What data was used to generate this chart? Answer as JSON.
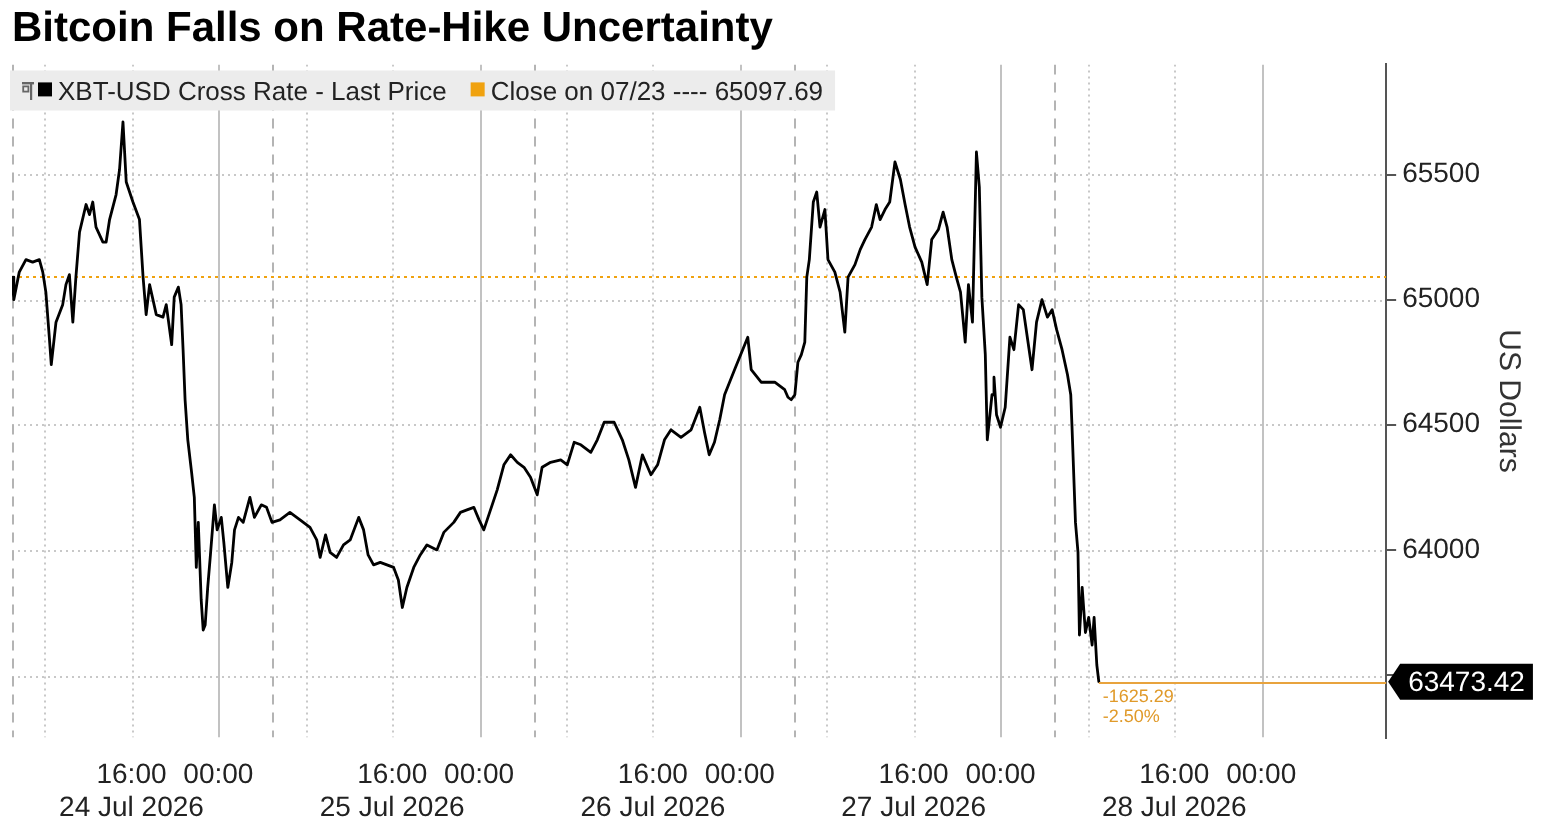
{
  "chart_data": {
    "type": "line",
    "title": "Bitcoin Falls on Rate-Hike Uncertainty",
    "ylabel": "US Dollars",
    "x": [
      "2026-07-24T05:00",
      "2026-07-24T05:10",
      "2026-07-24T05:40",
      "2026-07-24T06:17",
      "2026-07-24T06:54",
      "2026-07-24T07:31",
      "2026-07-24T07:50",
      "2026-07-24T08:07",
      "2026-07-24T08:26",
      "2026-07-24T08:37",
      "2026-07-24T09:03",
      "2026-07-24T09:40",
      "2026-07-24T09:58",
      "2026-07-24T10:17",
      "2026-07-24T10:36",
      "2026-07-24T10:53",
      "2026-07-24T11:13",
      "2026-07-24T11:49",
      "2026-07-24T12:08",
      "2026-07-24T12:26",
      "2026-07-24T12:44",
      "2026-07-24T13:22",
      "2026-07-24T13:40",
      "2026-07-24T13:59",
      "2026-07-24T14:35",
      "2026-07-24T14:54",
      "2026-07-24T15:13",
      "2026-07-24T15:31",
      "2026-07-24T16:08",
      "2026-07-24T16:44",
      "2026-07-24T17:04",
      "2026-07-24T17:21",
      "2026-07-24T17:40",
      "2026-07-24T18:17",
      "2026-07-24T18:54",
      "2026-07-24T19:12",
      "2026-07-24T19:42",
      "2026-07-24T19:56",
      "2026-07-24T20:19",
      "2026-07-24T20:34",
      "2026-07-24T20:45",
      "2026-07-24T20:56",
      "2026-07-24T21:11",
      "2026-07-24T21:32",
      "2026-07-24T21:47",
      "2026-07-24T21:58",
      "2026-07-24T22:09",
      "2026-07-24T22:25",
      "2026-07-24T22:36",
      "2026-07-24T22:47",
      "2026-07-24T23:01",
      "2026-07-24T23:16",
      "2026-07-24T23:38",
      "2026-07-24T23:53",
      "2026-07-25T00:16",
      "2026-07-25T00:30",
      "2026-07-25T00:52",
      "2026-07-25T01:14",
      "2026-07-25T01:29",
      "2026-07-25T01:51",
      "2026-07-25T02:17",
      "2026-07-25T02:54",
      "2026-07-25T03:19",
      "2026-07-25T03:57",
      "2026-07-25T04:26",
      "2026-07-25T04:56",
      "2026-07-25T05:40",
      "2026-07-25T06:35",
      "2026-07-25T07:31",
      "2026-07-25T08:26",
      "2026-07-25T09:03",
      "2026-07-25T09:22",
      "2026-07-25T09:52",
      "2026-07-25T10:17",
      "2026-07-25T10:53",
      "2026-07-25T11:31",
      "2026-07-25T12:08",
      "2026-07-25T12:55",
      "2026-07-25T13:22",
      "2026-07-25T13:47",
      "2026-07-25T14:17",
      "2026-07-25T14:54",
      "2026-07-25T15:31",
      "2026-07-25T16:08",
      "2026-07-25T16:34",
      "2026-07-25T16:56",
      "2026-07-25T17:21",
      "2026-07-25T17:59",
      "2026-07-25T18:35",
      "2026-07-25T19:12",
      "2026-07-25T20:07",
      "2026-07-25T20:45",
      "2026-07-25T21:40",
      "2026-07-25T22:17",
      "2026-07-25T22:53",
      "2026-07-25T23:31",
      "2026-07-26T00:00",
      "2026-07-26T00:26",
      "2026-07-26T01:03",
      "2026-07-26T01:40",
      "2026-07-26T02:17",
      "2026-07-26T02:54",
      "2026-07-26T03:31",
      "2026-07-26T04:08",
      "2026-07-26T04:44",
      "2026-07-26T05:21",
      "2026-07-26T05:48",
      "2026-07-26T06:35",
      "2026-07-26T07:31",
      "2026-07-26T08:07",
      "2026-07-26T08:45",
      "2026-07-26T09:22",
      "2026-07-26T10:17",
      "2026-07-26T10:53",
      "2026-07-26T11:31",
      "2026-07-26T12:26",
      "2026-07-26T13:11",
      "2026-07-26T13:47",
      "2026-07-26T14:24",
      "2026-07-26T15:02",
      "2026-07-26T15:49",
      "2026-07-26T16:26",
      "2026-07-26T17:04",
      "2026-07-26T17:40",
      "2026-07-26T18:35",
      "2026-07-26T19:31",
      "2026-07-26T20:19",
      "2026-07-26T20:45",
      "2026-07-26T21:11",
      "2026-07-26T21:40",
      "2026-07-26T22:09",
      "2026-07-26T22:36",
      "2026-07-26T23:31",
      "2026-07-27T00:44",
      "2026-07-27T01:03",
      "2026-07-27T01:58",
      "2026-07-27T03:13",
      "2026-07-27T04:08",
      "2026-07-27T04:26",
      "2026-07-27T04:44",
      "2026-07-27T05:04",
      "2026-07-27T05:21",
      "2026-07-27T05:40",
      "2026-07-27T05:59",
      "2026-07-27T06:10",
      "2026-07-27T06:24",
      "2026-07-27T06:46",
      "2026-07-27T07:05",
      "2026-07-27T07:23",
      "2026-07-27T07:50",
      "2026-07-27T08:07",
      "2026-07-27T08:45",
      "2026-07-27T09:14",
      "2026-07-27T09:40",
      "2026-07-27T09:58",
      "2026-07-27T10:36",
      "2026-07-27T11:05",
      "2026-07-27T11:31",
      "2026-07-27T12:08",
      "2026-07-27T12:34",
      "2026-07-27T12:55",
      "2026-07-27T13:22",
      "2026-07-27T13:48",
      "2026-07-27T14:17",
      "2026-07-27T14:47",
      "2026-07-27T15:13",
      "2026-07-27T15:38",
      "2026-07-27T16:08",
      "2026-07-27T16:45",
      "2026-07-27T17:15",
      "2026-07-27T17:40",
      "2026-07-27T18:17",
      "2026-07-27T18:43",
      "2026-07-27T19:05",
      "2026-07-27T19:31",
      "2026-07-27T19:56",
      "2026-07-27T20:19",
      "2026-07-27T20:45",
      "2026-07-27T21:03",
      "2026-07-27T21:25",
      "2026-07-27T21:47",
      "2026-07-27T22:03",
      "2026-07-27T22:17",
      "2026-07-27T22:36",
      "2026-07-27T22:47",
      "2026-07-27T23:13",
      "2026-07-27T23:24",
      "2026-07-27T23:38",
      "2026-07-28T00:00",
      "2026-07-28T00:26",
      "2026-07-28T00:52",
      "2026-07-28T01:14",
      "2026-07-28T01:40",
      "2026-07-28T02:06",
      "2026-07-28T02:28",
      "2026-07-28T02:54",
      "2026-07-28T03:19",
      "2026-07-28T03:49",
      "2026-07-28T04:19",
      "2026-07-28T04:45",
      "2026-07-28T05:10",
      "2026-07-28T05:40",
      "2026-07-28T06:10",
      "2026-07-28T06:28",
      "2026-07-28T06:35",
      "2026-07-28T06:54",
      "2026-07-28T07:08",
      "2026-07-28T07:16",
      "2026-07-28T07:31",
      "2026-07-28T07:49",
      "2026-07-28T08:07",
      "2026-07-28T08:26",
      "2026-07-28T08:37",
      "2026-07-28T08:52",
      "2026-07-28T09:03"
    ],
    "series": [
      {
        "name": "XBT-USD Cross Rate - Last Price",
        "color": "#000000",
        "values": [
          65090,
          65000,
          65110,
          65160,
          65150,
          65160,
          65110,
          65030,
          64850,
          64740,
          64910,
          64980,
          65060,
          65100,
          64910,
          65090,
          65270,
          65380,
          65340,
          65390,
          65290,
          65230,
          65230,
          65320,
          65420,
          65520,
          65710,
          65470,
          65390,
          65320,
          65090,
          64940,
          65060,
          64940,
          64930,
          64980,
          64820,
          65010,
          65050,
          64980,
          64800,
          64600,
          64440,
          64310,
          64210,
          63930,
          64110,
          63800,
          63680,
          63700,
          63850,
          63980,
          64180,
          64080,
          64130,
          64030,
          63850,
          63950,
          64080,
          64130,
          64110,
          64210,
          64130,
          64180,
          64170,
          64110,
          64120,
          64150,
          64120,
          64090,
          64040,
          63970,
          64060,
          63990,
          63970,
          64020,
          64040,
          64130,
          64080,
          63980,
          63940,
          63950,
          63940,
          63930,
          63880,
          63770,
          63850,
          63930,
          63980,
          64020,
          64000,
          64070,
          64110,
          64150,
          64160,
          64170,
          64120,
          64080,
          64160,
          64240,
          64340,
          64380,
          64350,
          64330,
          64290,
          64220,
          64330,
          64350,
          64360,
          64340,
          64430,
          64420,
          64390,
          64440,
          64510,
          64510,
          64440,
          64360,
          64250,
          64380,
          64300,
          64340,
          64440,
          64480,
          64450,
          64480,
          64570,
          64470,
          64380,
          64430,
          64520,
          64620,
          64720,
          64850,
          64720,
          64670,
          64670,
          64640,
          64610,
          64600,
          64620,
          64750,
          64780,
          64830,
          65090,
          65160,
          65390,
          65430,
          65290,
          65360,
          65160,
          65110,
          65030,
          64870,
          65090,
          65140,
          65200,
          65240,
          65290,
          65380,
          65320,
          65360,
          65390,
          65550,
          65480,
          65380,
          65290,
          65210,
          65150,
          65060,
          65240,
          65280,
          65350,
          65290,
          65160,
          65090,
          65030,
          64830,
          65060,
          64910,
          65590,
          65450,
          65010,
          64780,
          64440,
          64620,
          64690,
          64540,
          64490,
          64570,
          64850,
          64800,
          64980,
          64960,
          64850,
          64720,
          64910,
          65000,
          64930,
          64960,
          64880,
          64800,
          64700,
          64620,
          64490,
          64110,
          63990,
          63660,
          63850,
          63670,
          63730,
          63620,
          63730,
          63540,
          63473.42
        ]
      }
    ],
    "xlim": [
      "2026-07-24T05:00",
      "2026-07-29T11:30"
    ],
    "xticks": [
      {
        "value": "2026-07-24T08:00",
        "label": null
      },
      {
        "value": "2026-07-24T16:00",
        "label": "16:00\n24 Jul 2026"
      },
      {
        "value": "2026-07-25T00:00",
        "label": "00:00"
      },
      {
        "value": "2026-07-25T08:00",
        "label": null
      },
      {
        "value": "2026-07-25T16:00",
        "label": "16:00\n25 Jul 2026"
      },
      {
        "value": "2026-07-26T00:00",
        "label": "00:00"
      },
      {
        "value": "2026-07-26T08:00",
        "label": null
      },
      {
        "value": "2026-07-26T16:00",
        "label": "16:00\n26 Jul 2026"
      },
      {
        "value": "2026-07-27T00:00",
        "label": "00:00"
      },
      {
        "value": "2026-07-27T08:00",
        "label": null
      },
      {
        "value": "2026-07-27T16:00",
        "label": "16:00\n27 Jul 2026"
      },
      {
        "value": "2026-07-28T00:00",
        "label": "00:00"
      },
      {
        "value": "2026-07-28T08:00",
        "label": null
      },
      {
        "value": "2026-07-28T16:00",
        "label": "16:00\n28 Jul 2026"
      },
      {
        "value": "2026-07-29T00:00",
        "label": "00:00"
      }
    ],
    "ylim": [
      63250,
      65940
    ],
    "yticks": [
      {
        "value": 63500,
        "label": null
      },
      64000,
      64500,
      65000,
      65500
    ],
    "grid": true,
    "legend": "top left",
    "marker": "none",
    "ref_lines": [
      {
        "axis": "y",
        "value": 65097.69,
        "label": "Close on 07/23 ---- 65097.69",
        "color": "#f0a20f",
        "line_style": "dotted"
      },
      {
        "axis": "x",
        "value": "2026-07-24T05:00",
        "color": "#b4b4b4",
        "line_style": "dashed"
      },
      {
        "axis": "x",
        "value": "2026-07-25T05:00",
        "color": "#b4b4b4",
        "line_style": "dashed"
      },
      {
        "axis": "x",
        "value": "2026-07-26T05:00",
        "color": "#b4b4b4",
        "line_style": "dashed"
      },
      {
        "axis": "x",
        "value": "2026-07-27T05:00",
        "color": "#b4b4b4",
        "line_style": "dashed"
      },
      {
        "axis": "x",
        "value": "2026-07-28T05:00",
        "color": "#b4b4b4",
        "line_style": "dashed"
      }
    ],
    "annotations": [
      {
        "text": "63473.42",
        "x": "2026-07-28T09:03",
        "y": 63473.42
      },
      {
        "text": "-1625.29",
        "x": "2026-07-28T09:03",
        "y": 63473.42
      },
      {
        "text": "-2.50%",
        "x": "2026-07-28T09:03",
        "y": 63473.42
      }
    ]
  }
}
